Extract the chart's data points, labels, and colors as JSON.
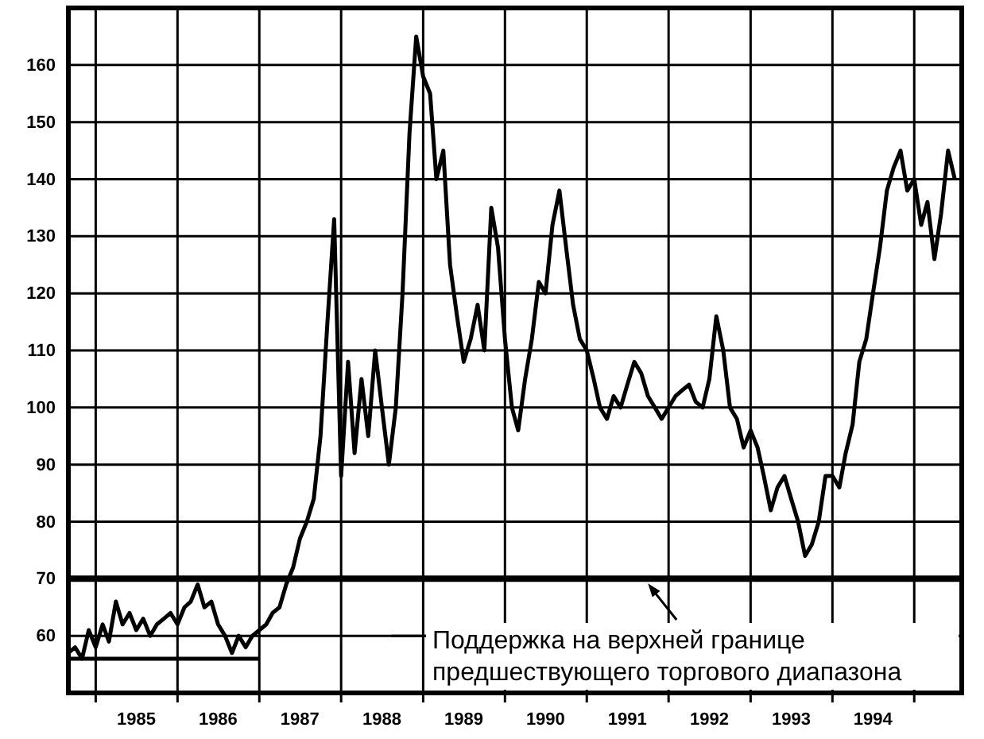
{
  "chart_data": {
    "type": "line",
    "x": [
      "1984-09",
      "1984-10",
      "1984-11",
      "1984-12",
      "1985-01",
      "1985-02",
      "1985-03",
      "1985-04",
      "1985-05",
      "1985-06",
      "1985-07",
      "1985-08",
      "1985-09",
      "1985-10",
      "1985-11",
      "1985-12",
      "1986-01",
      "1986-02",
      "1986-03",
      "1986-04",
      "1986-05",
      "1986-06",
      "1986-07",
      "1986-08",
      "1986-09",
      "1986-10",
      "1986-11",
      "1986-12",
      "1987-01",
      "1987-02",
      "1987-03",
      "1987-04",
      "1987-05",
      "1987-06",
      "1987-07",
      "1987-08",
      "1987-09",
      "1987-10",
      "1987-11",
      "1987-12",
      "1988-01",
      "1988-02",
      "1988-03",
      "1988-04",
      "1988-05",
      "1988-06",
      "1988-07",
      "1988-08",
      "1988-09",
      "1988-10",
      "1988-11",
      "1988-12",
      "1989-01",
      "1989-02",
      "1989-03",
      "1989-04",
      "1989-05",
      "1989-06",
      "1989-07",
      "1989-08",
      "1989-09",
      "1989-10",
      "1989-11",
      "1989-12",
      "1990-01",
      "1990-02",
      "1990-03",
      "1990-04",
      "1990-05",
      "1990-06",
      "1990-07",
      "1990-08",
      "1990-09",
      "1990-10",
      "1990-11",
      "1990-12",
      "1991-01",
      "1991-02",
      "1991-03",
      "1991-04",
      "1991-05",
      "1991-06",
      "1991-07",
      "1991-08",
      "1991-09",
      "1991-10",
      "1991-11",
      "1991-12",
      "1992-01",
      "1992-02",
      "1992-03",
      "1992-04",
      "1992-05",
      "1992-06",
      "1992-07",
      "1992-08",
      "1992-09",
      "1992-10",
      "1992-11",
      "1992-12",
      "1993-01",
      "1993-02",
      "1993-03",
      "1993-04",
      "1993-05",
      "1993-06",
      "1993-07",
      "1993-08",
      "1993-09",
      "1993-10",
      "1993-11",
      "1993-12",
      "1994-01",
      "1994-02",
      "1994-03",
      "1994-04",
      "1994-05",
      "1994-06",
      "1994-07",
      "1994-08",
      "1994-09",
      "1994-10",
      "1994-11",
      "1994-12",
      "1995-01",
      "1995-02",
      "1995-03",
      "1995-04",
      "1995-05",
      "1995-06",
      "1995-07"
    ],
    "series": [
      {
        "color": "#000000",
        "values": [
          57,
          58,
          56,
          61,
          58,
          62,
          59,
          66,
          62,
          64,
          61,
          63,
          60,
          62,
          63,
          64,
          62,
          65,
          66,
          69,
          65,
          66,
          62,
          60,
          57,
          60,
          58,
          60,
          61,
          62,
          64,
          65,
          69,
          72,
          77,
          80,
          84,
          95,
          115,
          133,
          88,
          108,
          92,
          105,
          95,
          110,
          100,
          90,
          100,
          120,
          148,
          165,
          158,
          155,
          140,
          145,
          125,
          116,
          108,
          112,
          118,
          110,
          135,
          128,
          112,
          100,
          96,
          105,
          112,
          122,
          120,
          132,
          138,
          128,
          118,
          112,
          110,
          105,
          100,
          98,
          102,
          100,
          104,
          108,
          106,
          102,
          100,
          98,
          100,
          102,
          103,
          104,
          101,
          100,
          105,
          116,
          110,
          100,
          98,
          93,
          96,
          93,
          88,
          82,
          86,
          88,
          84,
          80,
          74,
          76,
          80,
          88,
          88,
          86,
          92,
          97,
          108,
          112,
          120,
          128,
          138,
          142,
          145,
          138,
          140,
          132,
          136,
          126,
          134,
          145,
          140
        ]
      },
      {
        "color": "#000000",
        "x": [
          "1984-09",
          "1987-01"
        ],
        "values": [
          56,
          56
        ]
      }
    ],
    "ylim": [
      50,
      170
    ],
    "yticks": [
      60,
      70,
      80,
      90,
      100,
      110,
      120,
      130,
      140,
      150,
      160
    ],
    "xlim": [
      "1984-09",
      "1995-08"
    ],
    "xticks": [
      {
        "value": "1985-01",
        "label": null
      },
      {
        "value": "1985-07",
        "label": "1985"
      },
      {
        "value": "1986-01",
        "label": null
      },
      {
        "value": "1986-07",
        "label": "1986"
      },
      {
        "value": "1987-01",
        "label": null
      },
      {
        "value": "1987-07",
        "label": "1987"
      },
      {
        "value": "1988-01",
        "label": null
      },
      {
        "value": "1988-07",
        "label": "1988"
      },
      {
        "value": "1989-01",
        "label": null
      },
      {
        "value": "1989-07",
        "label": "1989"
      },
      {
        "value": "1990-01",
        "label": null
      },
      {
        "value": "1990-07",
        "label": "1990"
      },
      {
        "value": "1991-01",
        "label": null
      },
      {
        "value": "1991-07",
        "label": "1991"
      },
      {
        "value": "1992-01",
        "label": null
      },
      {
        "value": "1992-07",
        "label": "1992"
      },
      {
        "value": "1993-01",
        "label": null
      },
      {
        "value": "1993-07",
        "label": "1993"
      },
      {
        "value": "1994-01",
        "label": null
      },
      {
        "value": "1994-07",
        "label": "1994"
      },
      {
        "value": "1995-01",
        "label": null
      }
    ],
    "grid": true,
    "ref_lines": [
      {
        "axis": "y",
        "value": 70
      }
    ],
    "annotations": [
      {
        "text": "Поддержка на верхней границе предшествующего торгового диапазона",
        "x": "1991-10",
        "y": 70
      }
    ]
  }
}
